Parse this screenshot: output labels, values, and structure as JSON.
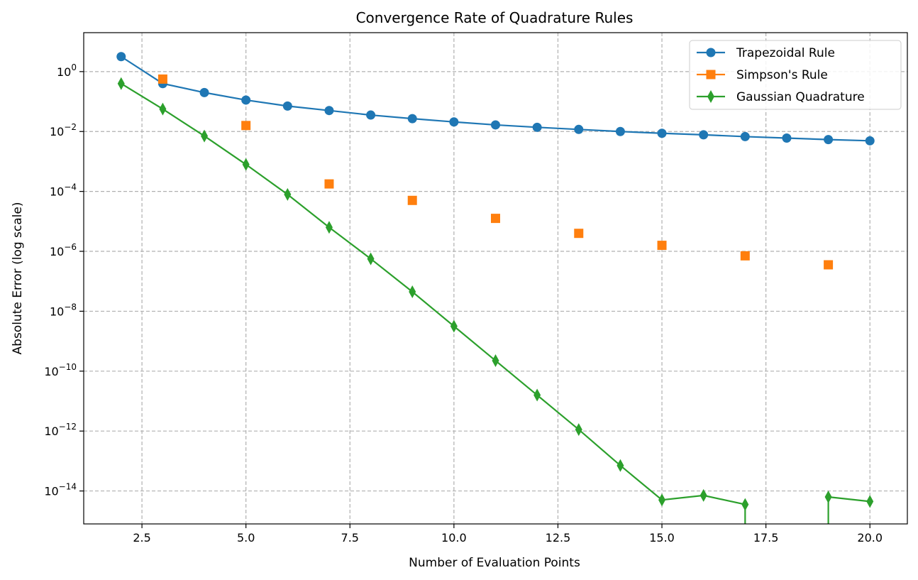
{
  "chart_data": {
    "type": "line",
    "title": "Convergence Rate of Quadrature Rules",
    "xlabel": "Number of Evaluation Points",
    "ylabel": "Absolute Error (log scale)",
    "xlim": [
      1.1,
      20.9
    ],
    "ylim_log10": [
      -15.1,
      1.3
    ],
    "yscale": "log",
    "grid": true,
    "legend_position": "top-right",
    "x_ticks": [
      2.5,
      5.0,
      7.5,
      10.0,
      12.5,
      15.0,
      17.5,
      20.0
    ],
    "x_tick_labels": [
      "2.5",
      "5.0",
      "7.5",
      "10.0",
      "12.5",
      "15.0",
      "17.5",
      "20.0"
    ],
    "y_ticks_log10": [
      0,
      -2,
      -4,
      -6,
      -8,
      -10,
      -12,
      -14
    ],
    "y_tick_labels": [
      {
        "base": "10",
        "exp": "0"
      },
      {
        "base": "10",
        "exp": "−2"
      },
      {
        "base": "10",
        "exp": "−4"
      },
      {
        "base": "10",
        "exp": "−6"
      },
      {
        "base": "10",
        "exp": "−8"
      },
      {
        "base": "10",
        "exp": "−10"
      },
      {
        "base": "10",
        "exp": "−12"
      },
      {
        "base": "10",
        "exp": "−14"
      }
    ],
    "series": [
      {
        "name": "Trapezoidal Rule",
        "color": "#1f77b4",
        "marker": "circle",
        "connected": true,
        "x": [
          2,
          3,
          4,
          5,
          6,
          7,
          8,
          9,
          10,
          11,
          12,
          13,
          14,
          15,
          16,
          17,
          18,
          19,
          20
        ],
        "y_log10": [
          0.5,
          -0.4,
          -0.7,
          -0.95,
          -1.15,
          -1.3,
          -1.45,
          -1.57,
          -1.68,
          -1.78,
          -1.86,
          -1.93,
          -2.0,
          -2.06,
          -2.11,
          -2.17,
          -2.22,
          -2.27,
          -2.31
        ]
      },
      {
        "name": "Simpson's Rule",
        "color": "#ff7f0e",
        "marker": "square",
        "connected": false,
        "x": [
          3,
          5,
          7,
          9,
          11,
          13,
          15,
          17,
          19
        ],
        "y_log10": [
          -0.25,
          -1.8,
          -3.75,
          -4.3,
          -4.9,
          -5.4,
          -5.8,
          -6.15,
          -6.45
        ]
      },
      {
        "name": "Gaussian Quadrature",
        "color": "#2ca02c",
        "marker": "thin_diamond",
        "connected": true,
        "x": [
          2,
          3,
          4,
          5,
          6,
          7,
          8,
          9,
          10,
          11,
          12,
          13,
          14,
          15,
          16,
          17,
          18,
          19,
          20
        ],
        "y_log10": [
          -0.4,
          -1.25,
          -2.15,
          -3.1,
          -4.1,
          -5.2,
          -6.25,
          -7.35,
          -8.5,
          -9.65,
          -10.8,
          -11.95,
          -13.15,
          -14.3,
          -14.15,
          -14.45,
          null,
          -14.2,
          -14.35
        ],
        "note_drop_to_zero_at": [
          17,
          19
        ]
      }
    ]
  }
}
